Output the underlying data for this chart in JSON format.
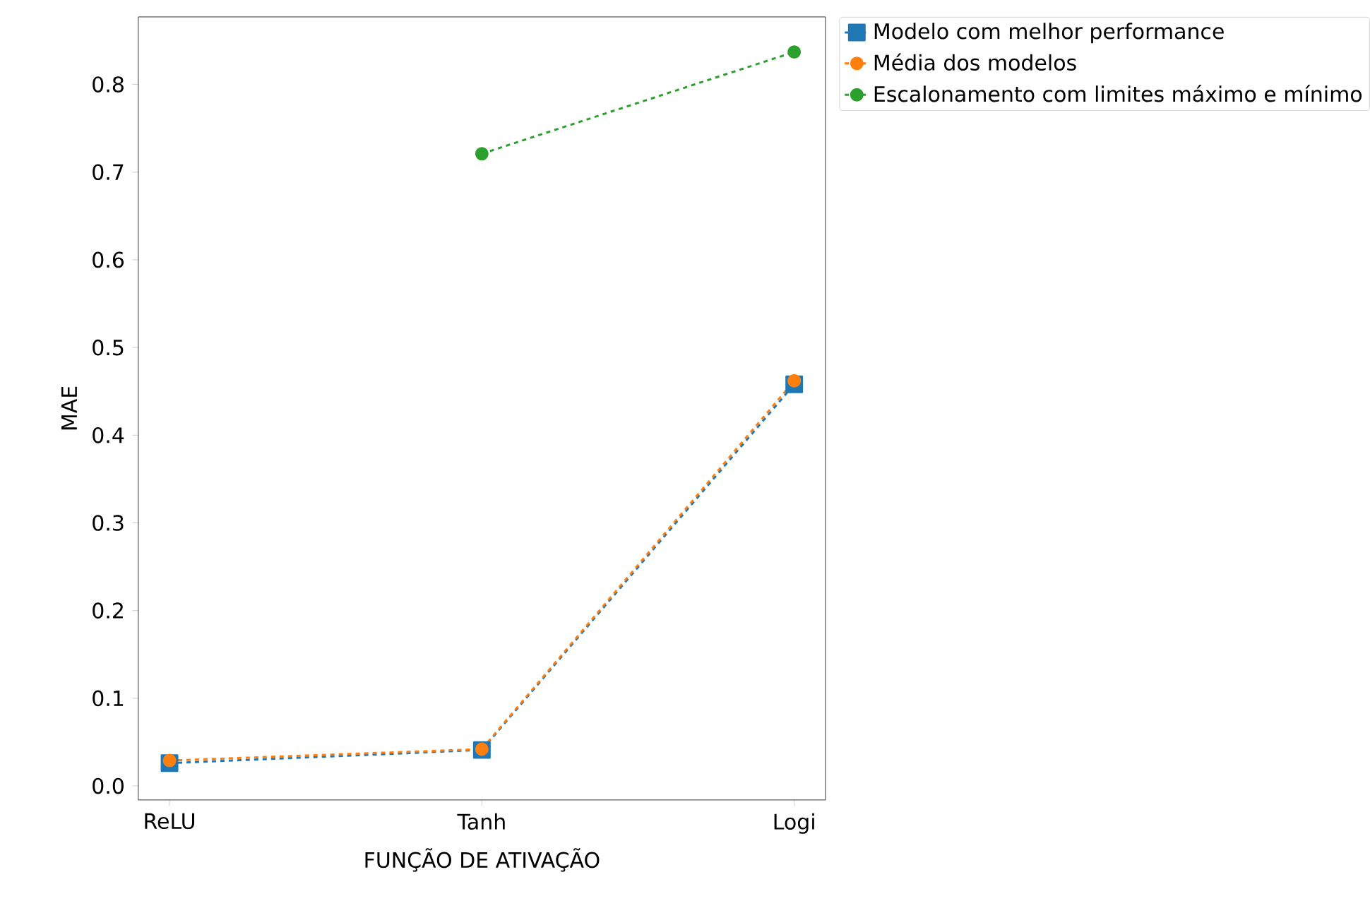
{
  "chart_data": {
    "type": "line",
    "xlabel": "FUNÇÃO DE ATIVAÇÃO",
    "ylabel": "MAE",
    "categories": [
      "ReLU",
      "Tanh",
      "Logi"
    ],
    "series": [
      {
        "name": "Modelo com melhor performance",
        "color": "#1f77b4",
        "marker": "square",
        "values": [
          0.026,
          0.041,
          0.458
        ]
      },
      {
        "name": "Média dos modelos",
        "color": "#ff7f0e",
        "marker": "circle",
        "values": [
          0.029,
          0.042,
          0.462
        ]
      },
      {
        "name": "Escalonamento com limites máximo e mínimo",
        "color": "#2ca02c",
        "marker": "circle",
        "values": [
          null,
          0.721,
          0.837
        ]
      }
    ],
    "line_style": "dashed",
    "legend": "top right",
    "grid": false,
    "ylim": [
      -0.016,
      0.877
    ],
    "yticks": [
      {
        "value": 0,
        "label": "0.0"
      },
      {
        "value": 0.1,
        "label": "0.1"
      },
      {
        "value": 0.2,
        "label": "0.2"
      },
      {
        "value": 0.3,
        "label": "0.3"
      },
      {
        "value": 0.4,
        "label": "0.4"
      },
      {
        "value": 0.5,
        "label": "0.5"
      },
      {
        "value": 0.6,
        "label": "0.6"
      },
      {
        "value": 0.7,
        "label": "0.7"
      },
      {
        "value": 0.8,
        "label": "0.8"
      }
    ]
  }
}
